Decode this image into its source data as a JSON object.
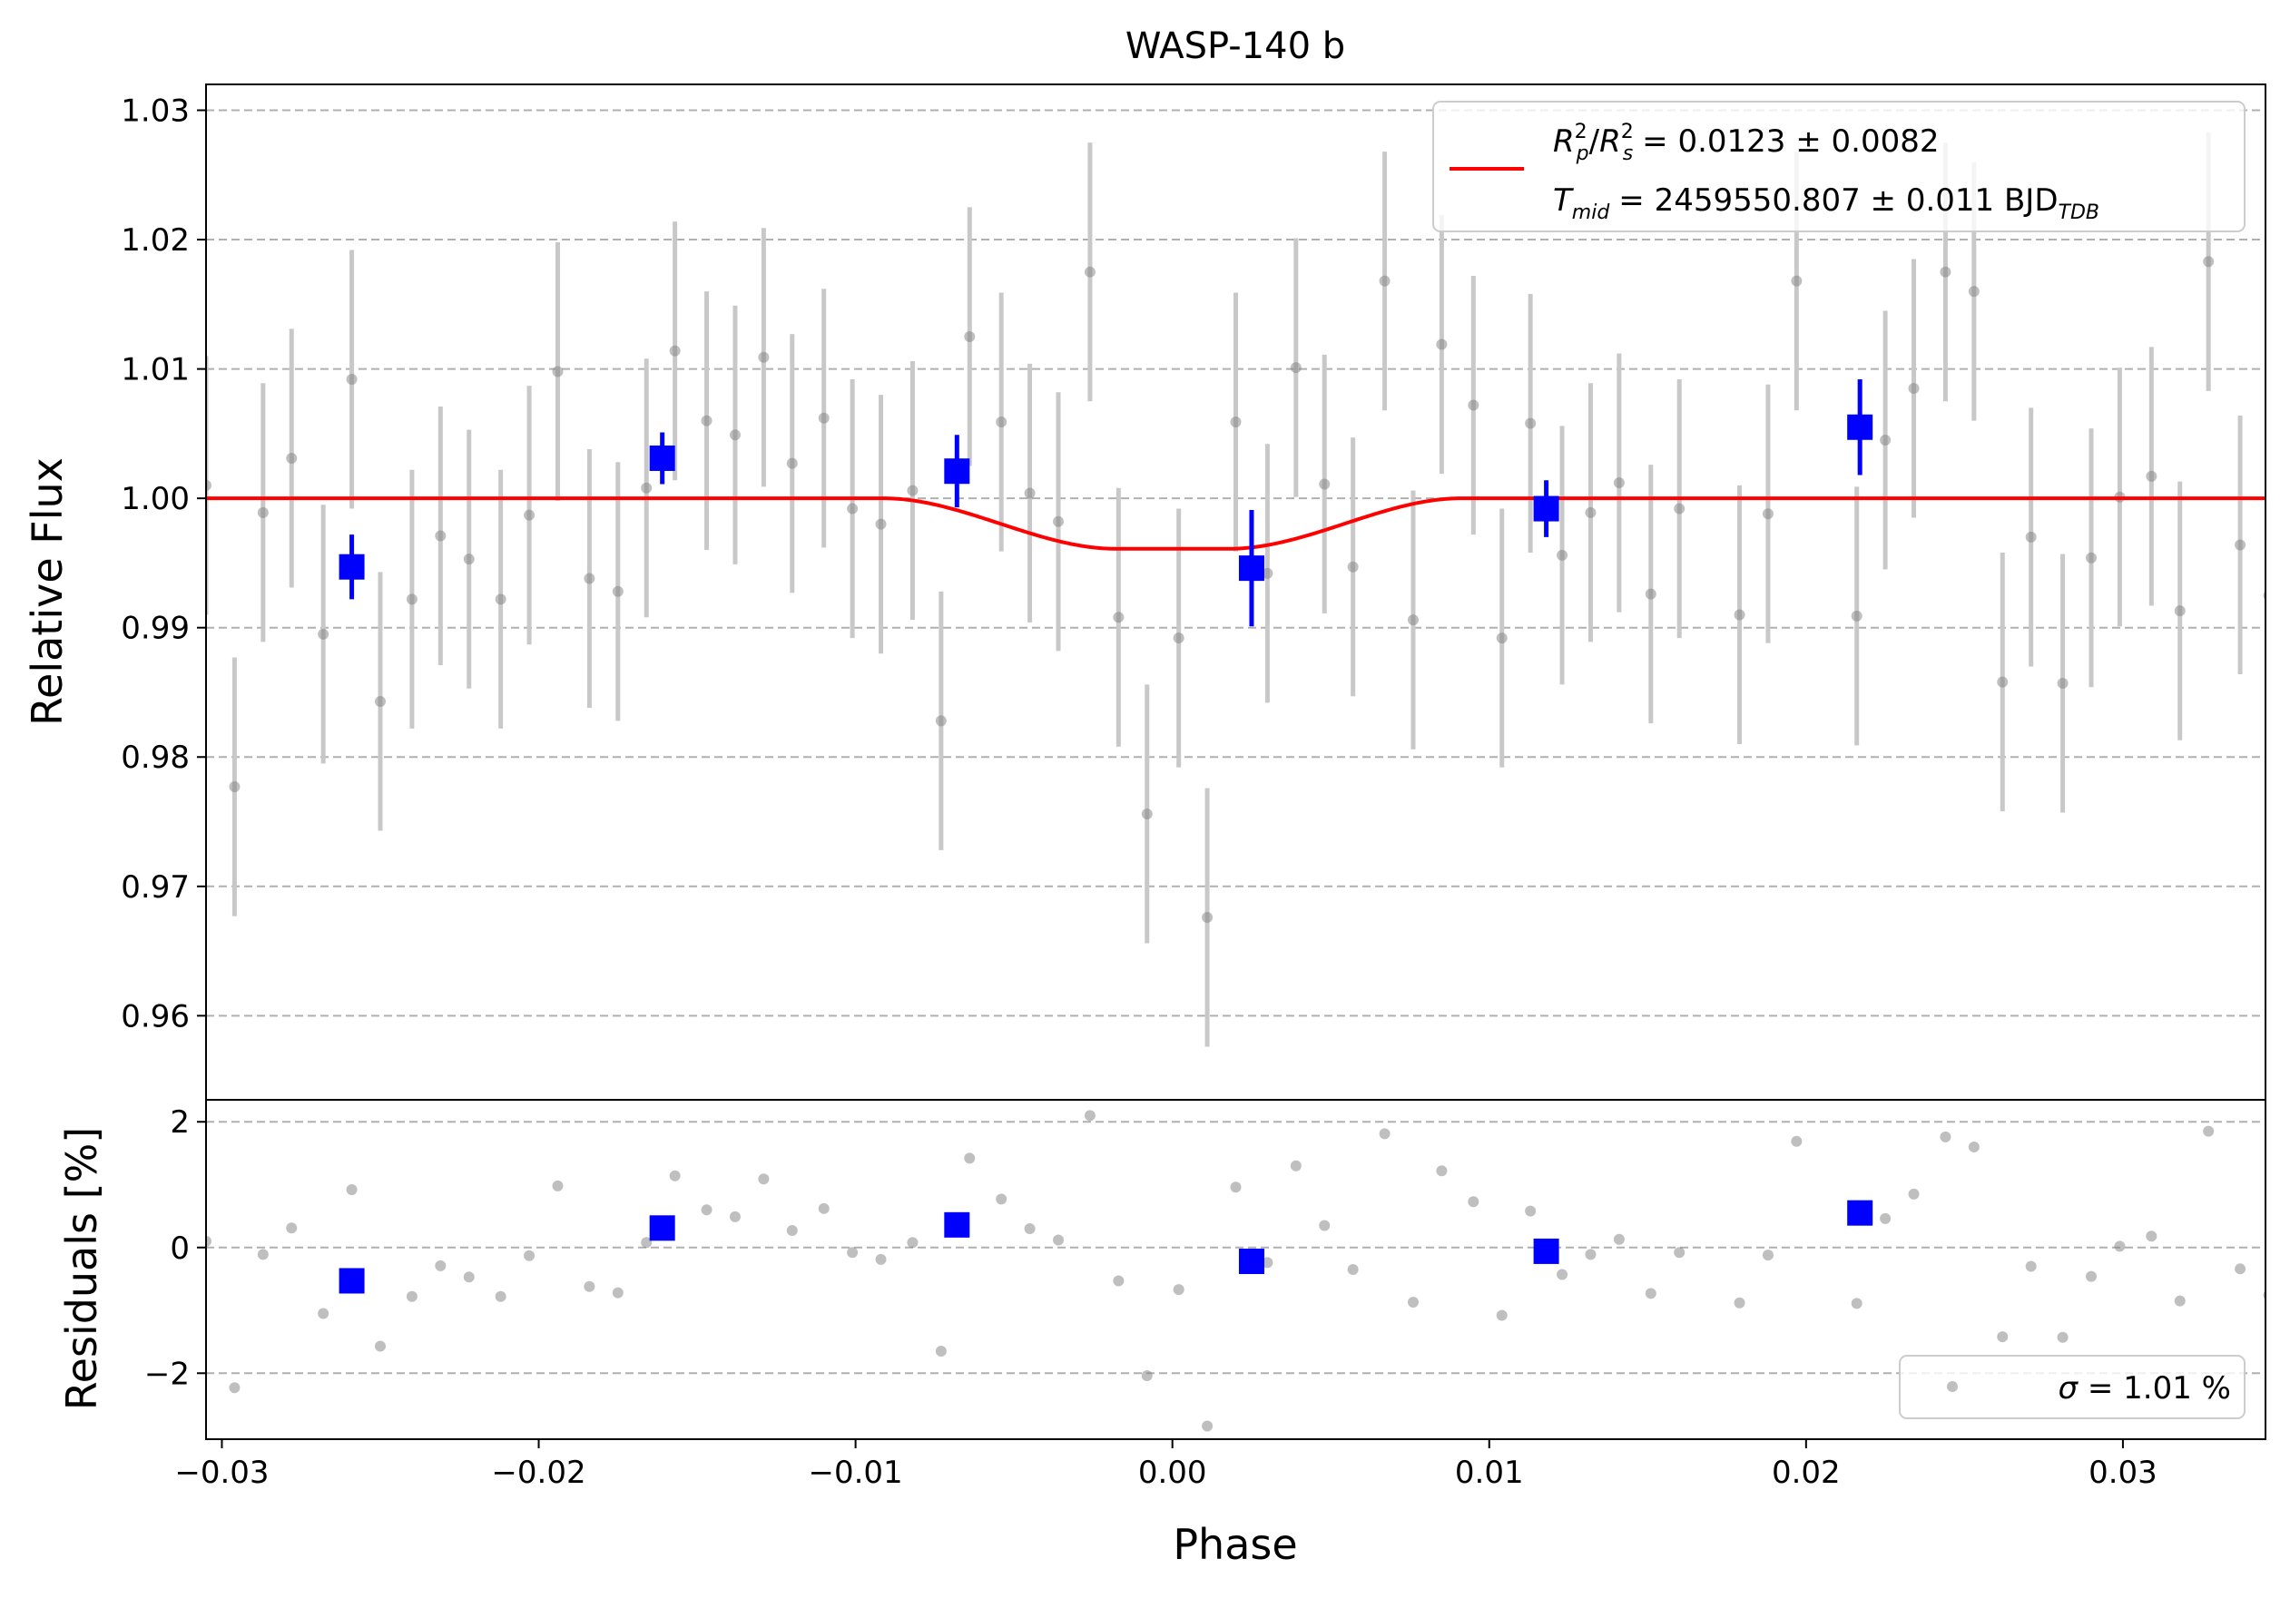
{
  "chart_data": [
    {
      "type": "scatter",
      "panel": "main",
      "title": "WASP-140 b",
      "xlabel": "",
      "ylabel": "Relative Flux",
      "xlim": [
        -0.0305,
        0.0345
      ],
      "ylim": [
        0.9535,
        1.032
      ],
      "grid": "y-dashed",
      "y_ticks": [
        0.96,
        0.97,
        0.98,
        0.99,
        1.0,
        1.01,
        1.02,
        1.03
      ],
      "y_tick_labels": [
        "0.96",
        "0.97",
        "0.98",
        "0.99",
        "1.00",
        "1.01",
        "1.02",
        "1.03"
      ],
      "legend": {
        "placement": "top-right",
        "line1": "= 0.0123 ± 0.0082",
        "line2_value": "= 2459550.807 ± 0.011 BJD",
        "line2_sub": "TDB",
        "rp_sub": "p",
        "rs_sub": "s",
        "tmid_sub": "mid"
      },
      "model": {
        "color": "#ff0000",
        "baseline": 1.0,
        "depth": 0.0039,
        "t1": -0.0091,
        "t4": 0.0091,
        "t2": -0.0018,
        "t3": 0.0018
      },
      "raw_color": "#808080",
      "binned_color": "#0000ff",
      "raw": [
        {
          "x": -0.0305,
          "y": 1.001,
          "e": 0.01
        },
        {
          "x": -0.0296,
          "y": 0.9777,
          "e": 0.01
        },
        {
          "x": -0.0287,
          "y": 0.9989,
          "e": 0.01
        },
        {
          "x": -0.0278,
          "y": 1.0031,
          "e": 0.01
        },
        {
          "x": -0.0268,
          "y": 0.9895,
          "e": 0.01
        },
        {
          "x": -0.0259,
          "y": 1.0092,
          "e": 0.01
        },
        {
          "x": -0.025,
          "y": 0.9843,
          "e": 0.01
        },
        {
          "x": -0.024,
          "y": 0.9922,
          "e": 0.01
        },
        {
          "x": -0.0231,
          "y": 0.9971,
          "e": 0.01
        },
        {
          "x": -0.0222,
          "y": 0.9953,
          "e": 0.01
        },
        {
          "x": -0.0212,
          "y": 0.9922,
          "e": 0.01
        },
        {
          "x": -0.0203,
          "y": 0.9987,
          "e": 0.01
        },
        {
          "x": -0.0194,
          "y": 1.0098,
          "e": 0.01
        },
        {
          "x": -0.0184,
          "y": 0.9938,
          "e": 0.01
        },
        {
          "x": -0.0175,
          "y": 0.9928,
          "e": 0.01
        },
        {
          "x": -0.0166,
          "y": 1.0008,
          "e": 0.01
        },
        {
          "x": -0.0157,
          "y": 1.0114,
          "e": 0.01
        },
        {
          "x": -0.0147,
          "y": 1.006,
          "e": 0.01
        },
        {
          "x": -0.0138,
          "y": 1.0049,
          "e": 0.01
        },
        {
          "x": -0.0129,
          "y": 1.0109,
          "e": 0.01
        },
        {
          "x": -0.012,
          "y": 1.0027,
          "e": 0.01
        },
        {
          "x": -0.011,
          "y": 1.0062,
          "e": 0.01
        },
        {
          "x": -0.0101,
          "y": 0.9992,
          "e": 0.01
        },
        {
          "x": -0.0092,
          "y": 0.998,
          "e": 0.01
        },
        {
          "x": -0.0082,
          "y": 1.0006,
          "e": 0.01
        },
        {
          "x": -0.0073,
          "y": 0.9828,
          "e": 0.01
        },
        {
          "x": -0.0064,
          "y": 1.0125,
          "e": 0.01
        },
        {
          "x": -0.0054,
          "y": 1.0059,
          "e": 0.01
        },
        {
          "x": -0.0045,
          "y": 1.0004,
          "e": 0.01
        },
        {
          "x": -0.0036,
          "y": 0.9982,
          "e": 0.01
        },
        {
          "x": -0.0026,
          "y": 1.0175,
          "e": 0.01
        },
        {
          "x": -0.0017,
          "y": 0.9908,
          "e": 0.01
        },
        {
          "x": -0.0008,
          "y": 0.9756,
          "e": 0.01
        },
        {
          "x": 0.0002,
          "y": 0.9892,
          "e": 0.01
        },
        {
          "x": 0.0011,
          "y": 0.9676,
          "e": 0.01
        },
        {
          "x": 0.002,
          "y": 1.0059,
          "e": 0.01
        },
        {
          "x": 0.003,
          "y": 0.9942,
          "e": 0.01
        },
        {
          "x": 0.0039,
          "y": 1.0101,
          "e": 0.01
        },
        {
          "x": 0.0048,
          "y": 1.0011,
          "e": 0.01
        },
        {
          "x": 0.0057,
          "y": 0.9947,
          "e": 0.01
        },
        {
          "x": 0.0067,
          "y": 1.0168,
          "e": 0.01
        },
        {
          "x": 0.0076,
          "y": 0.9906,
          "e": 0.01
        },
        {
          "x": 0.0085,
          "y": 1.0119,
          "e": 0.01
        },
        {
          "x": 0.0095,
          "y": 1.0072,
          "e": 0.01
        },
        {
          "x": 0.0104,
          "y": 0.9892,
          "e": 0.01
        },
        {
          "x": 0.0113,
          "y": 1.0058,
          "e": 0.01
        },
        {
          "x": 0.0123,
          "y": 0.9956,
          "e": 0.01
        },
        {
          "x": 0.0132,
          "y": 0.9989,
          "e": 0.01
        },
        {
          "x": 0.0141,
          "y": 1.0012,
          "e": 0.01
        },
        {
          "x": 0.0151,
          "y": 0.9926,
          "e": 0.01
        },
        {
          "x": 0.016,
          "y": 0.9992,
          "e": 0.01
        },
        {
          "x": 0.0179,
          "y": 0.991,
          "e": 0.01
        },
        {
          "x": 0.0188,
          "y": 0.9988,
          "e": 0.01
        },
        {
          "x": 0.0197,
          "y": 1.0168,
          "e": 0.01
        },
        {
          "x": 0.0216,
          "y": 0.9909,
          "e": 0.01
        },
        {
          "x": 0.0225,
          "y": 1.0045,
          "e": 0.01
        },
        {
          "x": 0.0234,
          "y": 1.0085,
          "e": 0.01
        },
        {
          "x": 0.0244,
          "y": 1.0175,
          "e": 0.01
        },
        {
          "x": 0.0253,
          "y": 1.016,
          "e": 0.01
        },
        {
          "x": 0.0262,
          "y": 0.9858,
          "e": 0.01
        },
        {
          "x": 0.0271,
          "y": 0.997,
          "e": 0.01
        },
        {
          "x": 0.0281,
          "y": 0.9857,
          "e": 0.01
        },
        {
          "x": 0.029,
          "y": 0.9954,
          "e": 0.01
        },
        {
          "x": 0.0299,
          "y": 1.0001,
          "e": 0.01
        },
        {
          "x": 0.0309,
          "y": 1.0017,
          "e": 0.01
        },
        {
          "x": 0.0318,
          "y": 0.9913,
          "e": 0.01
        },
        {
          "x": 0.0327,
          "y": 1.0183,
          "e": 0.01
        },
        {
          "x": 0.0337,
          "y": 0.9964,
          "e": 0.01
        },
        {
          "x": 0.0346,
          "y": 0.9925,
          "e": 0.01
        }
      ],
      "binned": [
        {
          "x": -0.0259,
          "y": 0.9947,
          "e": 0.0025
        },
        {
          "x": -0.0161,
          "y": 1.0031,
          "e": 0.002
        },
        {
          "x": -0.0068,
          "y": 1.0021,
          "e": 0.0028
        },
        {
          "x": 0.0025,
          "y": 0.9946,
          "e": 0.0045
        },
        {
          "x": 0.0118,
          "y": 0.9992,
          "e": 0.0022
        },
        {
          "x": 0.0217,
          "y": 1.0055,
          "e": 0.0037
        }
      ]
    },
    {
      "type": "scatter",
      "panel": "residuals",
      "xlabel": "Phase",
      "ylabel": "Residuals [%]",
      "xlim": [
        -0.0305,
        0.0345
      ],
      "ylim": [
        -3.05,
        2.35
      ],
      "grid": "y-dashed",
      "y_ticks": [
        -2,
        0,
        2
      ],
      "y_tick_labels": [
        "−2",
        "0",
        "2"
      ],
      "x_ticks": [
        -0.03,
        -0.02,
        -0.01,
        0.0,
        0.01,
        0.02,
        0.03
      ],
      "x_tick_labels": [
        "−0.03",
        "−0.02",
        "−0.01",
        "0.00",
        "0.01",
        "0.02",
        "0.03"
      ],
      "legend": {
        "placement": "bottom-right",
        "text": "= 1.01 %"
      },
      "raw": [
        {
          "x": -0.0305,
          "y": 0.1
        },
        {
          "x": -0.0296,
          "y": -2.23
        },
        {
          "x": -0.0287,
          "y": -0.11
        },
        {
          "x": -0.0278,
          "y": 0.31
        },
        {
          "x": -0.0268,
          "y": -1.05
        },
        {
          "x": -0.0259,
          "y": 0.92
        },
        {
          "x": -0.025,
          "y": -1.57
        },
        {
          "x": -0.024,
          "y": -0.78
        },
        {
          "x": -0.0231,
          "y": -0.29
        },
        {
          "x": -0.0222,
          "y": -0.47
        },
        {
          "x": -0.0212,
          "y": -0.78
        },
        {
          "x": -0.0203,
          "y": -0.13
        },
        {
          "x": -0.0194,
          "y": 0.98
        },
        {
          "x": -0.0184,
          "y": -0.62
        },
        {
          "x": -0.0175,
          "y": -0.72
        },
        {
          "x": -0.0166,
          "y": 0.08
        },
        {
          "x": -0.0157,
          "y": 1.14
        },
        {
          "x": -0.0147,
          "y": 0.6
        },
        {
          "x": -0.0138,
          "y": 0.49
        },
        {
          "x": -0.0129,
          "y": 1.09
        },
        {
          "x": -0.012,
          "y": 0.27
        },
        {
          "x": -0.011,
          "y": 0.62
        },
        {
          "x": -0.0101,
          "y": -0.08
        },
        {
          "x": -0.0092,
          "y": -0.19
        },
        {
          "x": -0.0082,
          "y": 0.08
        },
        {
          "x": -0.0073,
          "y": -1.65
        },
        {
          "x": -0.0064,
          "y": 1.42
        },
        {
          "x": -0.0054,
          "y": 0.77
        },
        {
          "x": -0.0045,
          "y": 0.3
        },
        {
          "x": -0.0036,
          "y": 0.12
        },
        {
          "x": -0.0026,
          "y": 2.1
        },
        {
          "x": -0.0017,
          "y": -0.53
        },
        {
          "x": -0.0008,
          "y": -2.04
        },
        {
          "x": 0.0002,
          "y": -0.67
        },
        {
          "x": 0.0011,
          "y": -2.84
        },
        {
          "x": 0.002,
          "y": 0.96
        },
        {
          "x": 0.003,
          "y": -0.24
        },
        {
          "x": 0.0039,
          "y": 1.3
        },
        {
          "x": 0.0048,
          "y": 0.35
        },
        {
          "x": 0.0057,
          "y": -0.35
        },
        {
          "x": 0.0067,
          "y": 1.81
        },
        {
          "x": 0.0076,
          "y": -0.87
        },
        {
          "x": 0.0085,
          "y": 1.22
        },
        {
          "x": 0.0095,
          "y": 0.73
        },
        {
          "x": 0.0104,
          "y": -1.08
        },
        {
          "x": 0.0113,
          "y": 0.58
        },
        {
          "x": 0.0123,
          "y": -0.43
        },
        {
          "x": 0.0132,
          "y": -0.11
        },
        {
          "x": 0.0141,
          "y": 0.13
        },
        {
          "x": 0.0151,
          "y": -0.73
        },
        {
          "x": 0.016,
          "y": -0.08
        },
        {
          "x": 0.0179,
          "y": -0.88
        },
        {
          "x": 0.0188,
          "y": -0.12
        },
        {
          "x": 0.0197,
          "y": 1.69
        },
        {
          "x": 0.0216,
          "y": -0.89
        },
        {
          "x": 0.0225,
          "y": 0.46
        },
        {
          "x": 0.0234,
          "y": 0.85
        },
        {
          "x": 0.0244,
          "y": 1.76
        },
        {
          "x": 0.0253,
          "y": 1.6
        },
        {
          "x": 0.0262,
          "y": -1.42
        },
        {
          "x": 0.0271,
          "y": -0.3
        },
        {
          "x": 0.0281,
          "y": -1.43
        },
        {
          "x": 0.029,
          "y": -0.46
        },
        {
          "x": 0.0299,
          "y": 0.02
        },
        {
          "x": 0.0309,
          "y": 0.18
        },
        {
          "x": 0.0318,
          "y": -0.85
        },
        {
          "x": 0.0327,
          "y": 1.85
        },
        {
          "x": 0.0337,
          "y": -0.34
        },
        {
          "x": 0.0346,
          "y": -0.76
        }
      ],
      "binned": [
        {
          "x": -0.0259,
          "y": -0.53
        },
        {
          "x": -0.0161,
          "y": 0.31
        },
        {
          "x": -0.0068,
          "y": 0.36
        },
        {
          "x": 0.0025,
          "y": -0.22
        },
        {
          "x": 0.0118,
          "y": -0.06
        },
        {
          "x": 0.0217,
          "y": 0.55
        }
      ]
    }
  ]
}
